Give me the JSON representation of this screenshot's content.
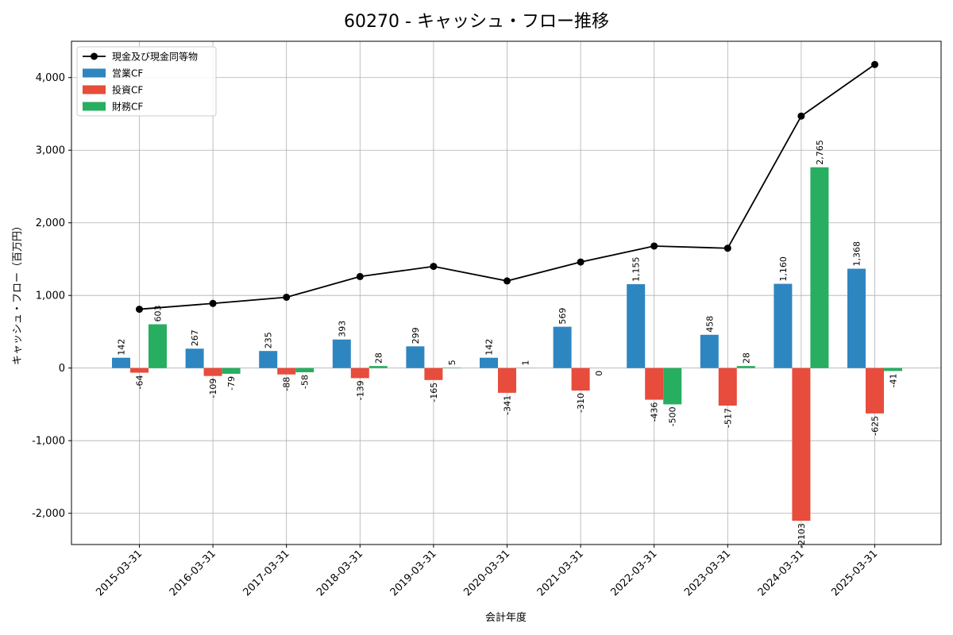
{
  "chart_data": {
    "type": "bar",
    "title": "60270 - キャッシュ・フロー推移",
    "xlabel": "会計年度",
    "ylabel": "キャッシュ・フロー（百万円）",
    "ylim": [
      -2430,
      4500
    ],
    "yticks": [
      -2000,
      -1000,
      0,
      1000,
      2000,
      3000,
      4000
    ],
    "ytick_labels": [
      "-2,000",
      "-1,000",
      "0",
      "1,000",
      "2,000",
      "3,000",
      "4,000"
    ],
    "grid": true,
    "legend_position": "top-left",
    "categories": [
      "2015-03-31",
      "2016-03-31",
      "2017-03-31",
      "2018-03-31",
      "2019-03-31",
      "2020-03-31",
      "2021-03-31",
      "2022-03-31",
      "2023-03-31",
      "2024-03-31",
      "2025-03-31"
    ],
    "series": [
      {
        "name": "営業CF",
        "kind": "bar",
        "color": "#2e86c1",
        "values": [
          142,
          267,
          235,
          393,
          299,
          142,
          569,
          1155,
          458,
          1160,
          1368
        ],
        "labels": [
          "142",
          "267",
          "235",
          "393",
          "299",
          "142",
          "569",
          "1,155",
          "458",
          "1,160",
          "1,368"
        ]
      },
      {
        "name": "投資CF",
        "kind": "bar",
        "color": "#e74c3c",
        "values": [
          -64,
          -109,
          -88,
          -139,
          -165,
          -341,
          -310,
          -436,
          -517,
          -2103,
          -625
        ],
        "labels": [
          "-64",
          "-109",
          "-88",
          "-139",
          "-165",
          "-341",
          "-310",
          "-436",
          "-517",
          "-2103",
          "-625"
        ]
      },
      {
        "name": "財務CF",
        "kind": "bar",
        "color": "#27ae60",
        "values": [
          603,
          -79,
          -58,
          28,
          5,
          1,
          0,
          -500,
          28,
          2765,
          -41
        ],
        "labels": [
          "603",
          "-79",
          "-58",
          "28",
          "5",
          "1",
          "0",
          "-500",
          "28",
          "2,765",
          "-41"
        ]
      },
      {
        "name": "現金及び現金同等物",
        "kind": "line",
        "color": "#000000",
        "values": [
          810,
          890,
          975,
          1260,
          1400,
          1200,
          1460,
          1680,
          1650,
          3470,
          4180
        ]
      }
    ]
  }
}
